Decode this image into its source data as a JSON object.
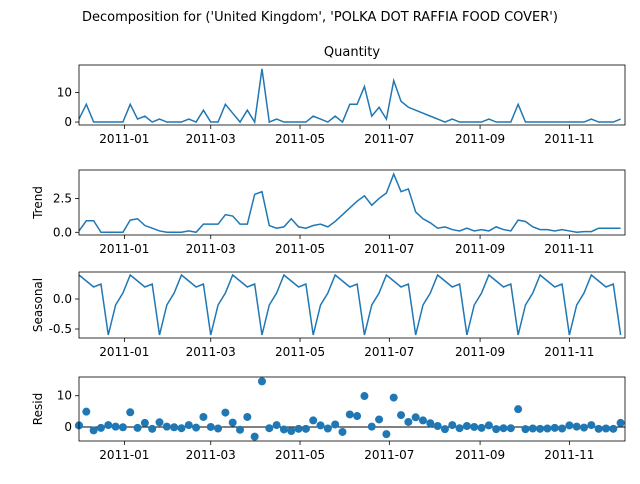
{
  "chart_data": {
    "type": "line",
    "title": "Decomposition for ('United Kingdom', 'POLKA DOT RAFFIA FOOD COVER')",
    "color": "#1f77b4",
    "x": [
      "2010-12-01",
      "2010-12-06",
      "2010-12-11",
      "2010-12-16",
      "2010-12-21",
      "2010-12-26",
      "2010-12-31",
      "2011-01-05",
      "2011-01-10",
      "2011-01-15",
      "2011-01-20",
      "2011-01-25",
      "2011-01-30",
      "2011-02-04",
      "2011-02-09",
      "2011-02-14",
      "2011-02-19",
      "2011-02-24",
      "2011-03-01",
      "2011-03-06",
      "2011-03-11",
      "2011-03-16",
      "2011-03-21",
      "2011-03-26",
      "2011-03-31",
      "2011-04-05",
      "2011-04-10",
      "2011-04-15",
      "2011-04-20",
      "2011-04-25",
      "2011-04-30",
      "2011-05-05",
      "2011-05-10",
      "2011-05-15",
      "2011-05-20",
      "2011-05-25",
      "2011-05-30",
      "2011-06-04",
      "2011-06-09",
      "2011-06-14",
      "2011-06-19",
      "2011-06-24",
      "2011-06-29",
      "2011-07-04",
      "2011-07-09",
      "2011-07-14",
      "2011-07-19",
      "2011-07-24",
      "2011-07-29",
      "2011-08-03",
      "2011-08-08",
      "2011-08-13",
      "2011-08-18",
      "2011-08-23",
      "2011-08-28",
      "2011-09-02",
      "2011-09-07",
      "2011-09-12",
      "2011-09-17",
      "2011-09-22",
      "2011-09-27",
      "2011-10-02",
      "2011-10-07",
      "2011-10-12",
      "2011-10-17",
      "2011-10-22",
      "2011-10-27",
      "2011-11-01",
      "2011-11-06",
      "2011-11-11",
      "2011-11-16",
      "2011-11-21",
      "2011-11-26",
      "2011-12-01",
      "2011-12-06"
    ],
    "xlim": [
      "2010-12-01",
      "2011-12-09"
    ],
    "xticks": [
      {
        "value": "2011-01-01",
        "label": "2011-01"
      },
      {
        "value": "2011-03-01",
        "label": "2011-03"
      },
      {
        "value": "2011-05-01",
        "label": "2011-05"
      },
      {
        "value": "2011-07-01",
        "label": "2011-07"
      },
      {
        "value": "2011-09-01",
        "label": "2011-09"
      },
      {
        "value": "2011-11-01",
        "label": "2011-11"
      }
    ],
    "panels": [
      {
        "type": "line",
        "title": "Quantity",
        "ylim": [
          -1,
          19.3
        ],
        "yticks": [
          0,
          10
        ],
        "values": [
          1,
          6,
          0,
          0,
          0,
          0,
          0,
          6,
          1,
          2,
          0,
          1,
          0,
          0,
          0,
          1,
          0,
          4,
          0,
          0,
          6,
          3,
          0,
          4,
          0,
          18,
          0,
          1,
          0,
          0,
          0,
          0,
          2,
          1,
          0,
          2,
          0,
          6,
          6,
          12,
          2,
          5,
          1,
          14,
          7,
          5,
          4,
          3,
          2,
          1,
          0,
          1,
          0,
          0,
          0,
          0,
          1,
          0,
          0,
          0,
          6,
          0,
          0,
          0,
          0,
          0,
          0,
          0,
          0,
          0,
          1,
          0,
          0,
          0,
          1
        ]
      },
      {
        "type": "line",
        "ylabel": "Trend",
        "ylim": [
          -0.2,
          4.6
        ],
        "yticks": [
          {
            "value": 0,
            "label": "0.0"
          },
          2.5
        ],
        "values": [
          0.1,
          0.85,
          0.85,
          0,
          0,
          0,
          0,
          0.9,
          1.0,
          0.5,
          0.3,
          0.1,
          0,
          0,
          0,
          0.1,
          0,
          0.6,
          0.6,
          0.6,
          1.3,
          1.2,
          0.6,
          0.6,
          2.8,
          3.0,
          0.5,
          0.3,
          0.4,
          1.0,
          0.4,
          0.3,
          0.5,
          0.6,
          0.4,
          0.8,
          1.3,
          1.8,
          2.3,
          2.7,
          2.0,
          2.5,
          2.9,
          4.3,
          3.0,
          3.2,
          1.5,
          1.0,
          0.7,
          0.3,
          0.4,
          0.2,
          0.1,
          0.3,
          0.1,
          0.2,
          0.1,
          0.4,
          0.2,
          0.1,
          0.9,
          0.8,
          0.4,
          0.2,
          0.2,
          0.1,
          0.2,
          0.1,
          0,
          0.05,
          0.05,
          0.3,
          0.3,
          0.3,
          0.3
        ]
      },
      {
        "type": "line",
        "ylabel": "Seasonal",
        "ylim": [
          -0.65,
          0.45
        ],
        "yticks": [
          -0.5,
          {
            "value": 0,
            "label": "0.0"
          }
        ],
        "values": [
          0.4,
          0.3,
          0.2,
          0.25,
          -0.6,
          -0.1,
          0.1,
          0.4,
          0.3,
          0.2,
          0.25,
          -0.6,
          -0.1,
          0.1,
          0.4,
          0.3,
          0.2,
          0.25,
          -0.6,
          -0.1,
          0.1,
          0.4,
          0.3,
          0.2,
          0.25,
          -0.6,
          -0.1,
          0.1,
          0.4,
          0.3,
          0.2,
          0.25,
          -0.6,
          -0.1,
          0.1,
          0.4,
          0.3,
          0.2,
          0.25,
          -0.6,
          -0.1,
          0.1,
          0.4,
          0.3,
          0.2,
          0.25,
          -0.6,
          -0.1,
          0.1,
          0.4,
          0.3,
          0.2,
          0.25,
          -0.6,
          -0.1,
          0.1,
          0.4,
          0.3,
          0.2,
          0.25,
          -0.6,
          -0.1,
          0.1,
          0.4,
          0.3,
          0.2,
          0.25,
          -0.6,
          -0.1,
          0.1,
          0.4,
          0.3,
          0.2,
          0.25,
          -0.6
        ]
      },
      {
        "type": "scatter",
        "ylabel": "Resid",
        "ylim": [
          -4.5,
          16
        ],
        "yticks": [
          0,
          10
        ],
        "values": [
          0.5,
          4.9,
          -1.1,
          -0.3,
          0.6,
          0.1,
          -0.1,
          4.7,
          -0.3,
          1.3,
          -0.6,
          1.5,
          0.1,
          -0.1,
          -0.4,
          0.6,
          -0.2,
          3.2,
          0,
          -0.5,
          4.6,
          1.4,
          -0.9,
          3.2,
          -3.1,
          14.6,
          -0.4,
          0.6,
          -0.8,
          -1.3,
          -0.6,
          -0.6,
          2.1,
          0.5,
          -0.5,
          0.8,
          -1.6,
          4.0,
          3.5,
          9.9,
          0.1,
          2.4,
          -2.3,
          9.4,
          3.8,
          1.6,
          3.1,
          2.1,
          1.2,
          0.3,
          -0.7,
          0.6,
          -0.4,
          0.3,
          0,
          -0.3,
          0.5,
          -0.7,
          -0.4,
          -0.4,
          5.7,
          -0.7,
          -0.5,
          -0.6,
          -0.5,
          -0.3,
          -0.5,
          0.5,
          0.1,
          -0.2,
          0.6,
          -0.6,
          -0.5,
          -0.6,
          1.3
        ]
      }
    ]
  }
}
